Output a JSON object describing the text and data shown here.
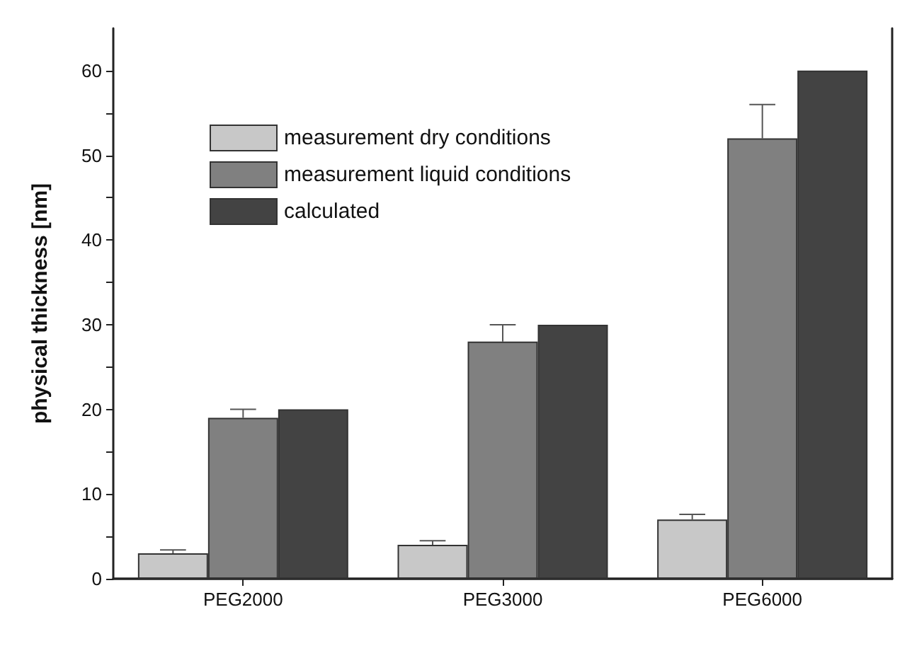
{
  "chart_data": {
    "type": "bar",
    "ylabel": "physical thickness [nm]",
    "categories": [
      "PEG2000",
      "PEG3000",
      "PEG6000"
    ],
    "series": [
      {
        "name": "measurement dry conditions",
        "color": "#c8c8c8",
        "values": [
          3,
          4,
          7
        ],
        "errors": [
          0.4,
          0.5,
          0.6
        ]
      },
      {
        "name": "measurement liquid conditions",
        "color": "#808080",
        "values": [
          19,
          28,
          52
        ],
        "errors": [
          1,
          2,
          4
        ]
      },
      {
        "name": "calculated",
        "color": "#434343",
        "values": [
          20,
          30,
          60
        ]
      }
    ],
    "ylim": [
      0,
      65
    ],
    "yticks": [
      0,
      {
        "value": 5,
        "label": null
      },
      10,
      {
        "value": 15,
        "label": null
      },
      20,
      {
        "value": 25,
        "label": null
      },
      30,
      {
        "value": 35,
        "label": null
      },
      40,
      {
        "value": 45,
        "label": null
      },
      50,
      {
        "value": 55,
        "label": null
      },
      60
    ],
    "grid": false,
    "legend": "top left"
  }
}
